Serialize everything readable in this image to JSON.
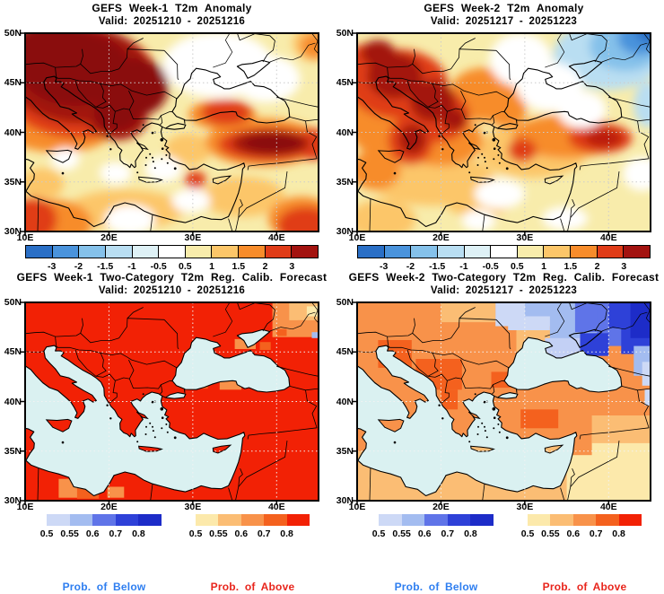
{
  "panels": [
    {
      "title": "GEFS Week-1 T2m Anomaly",
      "valid": "Valid: 20251210 - 20251216",
      "kind": "anomaly",
      "field": "a1"
    },
    {
      "title": "GEFS Week-2 T2m Anomaly",
      "valid": "Valid: 20251217 - 20251223",
      "kind": "anomaly",
      "field": "a2"
    },
    {
      "title": "GEFS Week-1 Two-Category T2m Reg. Calib. Forecast",
      "valid": "Valid: 20251210 - 20251216",
      "kind": "prob",
      "field": "p1"
    },
    {
      "title": "GEFS Week-2 Two-Category T2m Reg. Calib. Forecast",
      "valid": "Valid: 20251217 - 20251223",
      "kind": "prob",
      "field": "p2"
    }
  ],
  "axis": {
    "lat": [
      "50N",
      "45N",
      "40N",
      "35N",
      "30N"
    ],
    "lon": [
      "10E",
      "20E",
      "30E",
      "40E"
    ]
  },
  "anomaly_ticks": [
    "-3",
    "-2",
    "-1.5",
    "-1",
    "-0.5",
    "0.5",
    "1",
    "1.5",
    "2",
    "3"
  ],
  "prob_ticks": [
    "0.5",
    "0.55",
    "0.6",
    "0.7",
    "0.8"
  ],
  "legend": {
    "below": "Prob. of Below",
    "above": "Prob. of Above"
  },
  "colors": {
    "anomaly_scale": [
      "#2a6fc6",
      "#4a93dc",
      "#85c1ea",
      "#b9def2",
      "#def1f6",
      "#ffffff",
      "#f8ecab",
      "#fcc669",
      "#f78c2b",
      "#e03c18",
      "#a31310"
    ],
    "below_scale": [
      "#cdd9f6",
      "#a3bcf0",
      "#5f74e8",
      "#2e41d8",
      "#1d2cc8"
    ],
    "above_scale": [
      "#fce9ab",
      "#fbbd74",
      "#f8924a",
      "#f4611e",
      "#f22105"
    ],
    "sea": "#daf1f1",
    "dark_core": "#8a0c08",
    "east_core": "#bb1c0c",
    "crimea": "#c3d0f5",
    "below_label": "#2e7ef0",
    "above_label": "#e8251c",
    "coast": "#000000",
    "grid_top": "#cccccc",
    "grid_bottom": "#f2f2f2"
  },
  "chart_data": {
    "type": "heatmap",
    "region": {
      "lon_range": [
        "10E",
        "45E"
      ],
      "lat_range": [
        "30N",
        "50N"
      ]
    },
    "anomaly_colorbar_ticks": [
      -3,
      -2,
      -1.5,
      -1,
      -0.5,
      0.5,
      1,
      1.5,
      2,
      3
    ],
    "probability_colorbar_ticks": [
      0.5,
      0.55,
      0.6,
      0.7,
      0.8
    ],
    "legend_entries": [
      "Prob. of Below",
      "Prob. of Above"
    ]
  }
}
